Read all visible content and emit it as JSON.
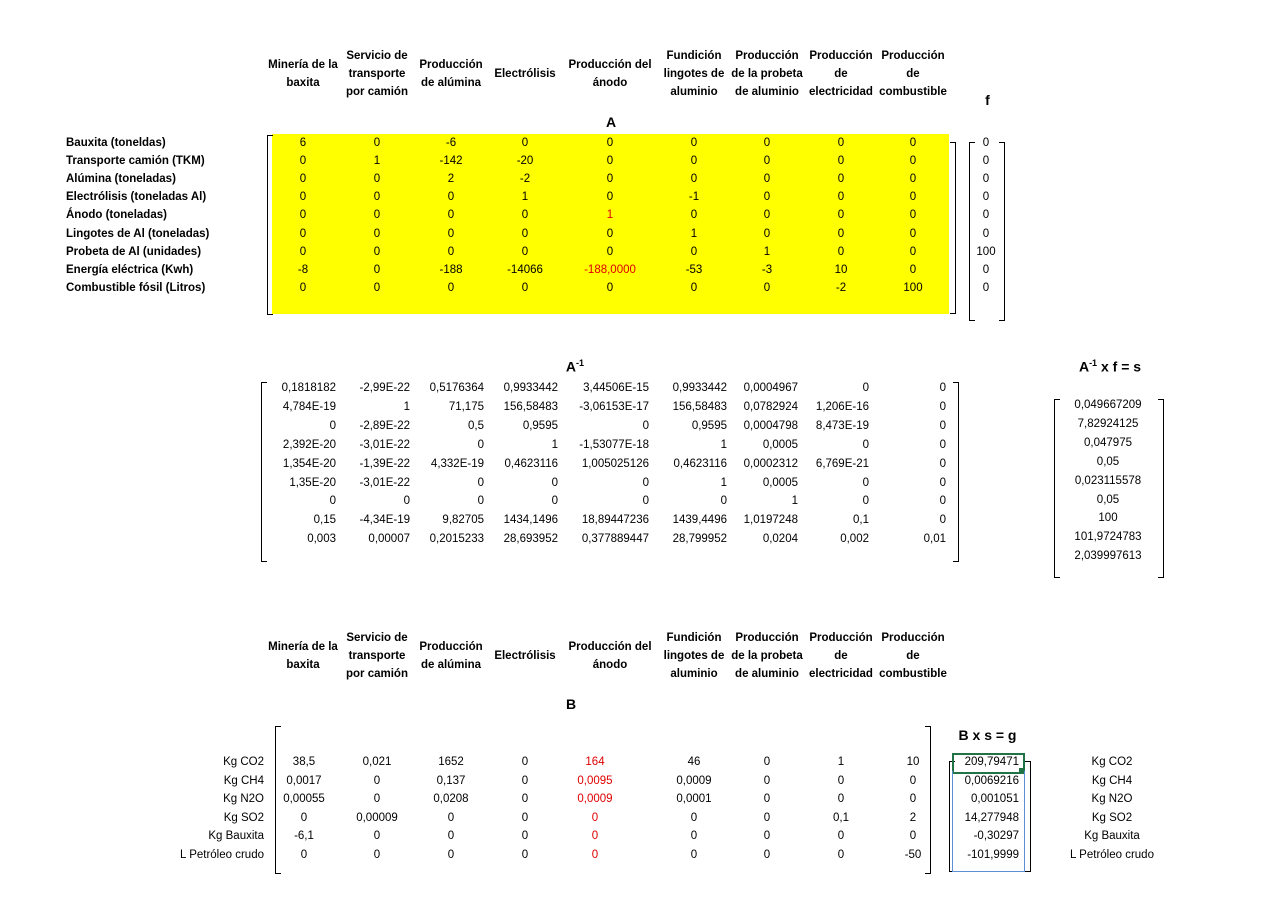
{
  "headers": [
    "Minería de la baxita",
    "Servicio de transporte por camión",
    "Producción de alúmina",
    "Electrólisis",
    "Producción del ánodo",
    "Fundición lingotes de aluminio",
    "Producción de la probeta de aluminio",
    "Producción de electricidad",
    "Producción de combustible"
  ],
  "A": {
    "title": "A",
    "f_title": "f",
    "row_labels": [
      "Bauxita (toneldas)",
      "Transporte camión (TKM)",
      "Alúmina (toneladas)",
      "Electrólisis (toneladas Al)",
      "Ánodo (toneladas)",
      "Lingotes de Al (toneladas)",
      "Probeta de Al (unidades)",
      "Energía eléctrica (Kwh)",
      "Combustible fósil (Litros)"
    ],
    "rows": [
      [
        "6",
        "0",
        "-6",
        "0",
        "0",
        "0",
        "0",
        "0",
        "0"
      ],
      [
        "0",
        "1",
        "-142",
        "-20",
        "0",
        "0",
        "0",
        "0",
        "0"
      ],
      [
        "0",
        "0",
        "2",
        "-2",
        "0",
        "0",
        "0",
        "0",
        "0"
      ],
      [
        "0",
        "0",
        "0",
        "1",
        "0",
        "-1",
        "0",
        "0",
        "0"
      ],
      [
        "0",
        "0",
        "0",
        "0",
        "1",
        "0",
        "0",
        "0",
        "0"
      ],
      [
        "0",
        "0",
        "0",
        "0",
        "0",
        "1",
        "0",
        "0",
        "0"
      ],
      [
        "0",
        "0",
        "0",
        "0",
        "0",
        "0",
        "1",
        "0",
        "0"
      ],
      [
        "-8",
        "0",
        "-188",
        "-14066",
        "-188,0000",
        "-53",
        "-3",
        "10",
        "0"
      ],
      [
        "0",
        "0",
        "0",
        "0",
        "0",
        "0",
        "0",
        "-2",
        "100"
      ]
    ],
    "f": [
      "0",
      "0",
      "0",
      "0",
      "0",
      "0",
      "100",
      "0",
      "0"
    ]
  },
  "Ainv": {
    "title": "A",
    "title_sup": "-1",
    "s_title_a": "A",
    "s_title_sup": "-1",
    "s_title_rest": " x f = s",
    "rows": [
      [
        "0,1818182",
        "-2,99E-22",
        "0,5176364",
        "0,9933442",
        "3,44506E-15",
        "0,9933442",
        "0,0004967",
        "0",
        "0"
      ],
      [
        "4,784E-19",
        "1",
        "71,175",
        "156,58483",
        "-3,06153E-17",
        "156,58483",
        "0,0782924",
        "1,206E-16",
        "0"
      ],
      [
        "0",
        "-2,89E-22",
        "0,5",
        "0,9595",
        "0",
        "0,9595",
        "0,0004798",
        "8,473E-19",
        "0"
      ],
      [
        "2,392E-20",
        "-3,01E-22",
        "0",
        "1",
        "-1,53077E-18",
        "1",
        "0,0005",
        "0",
        "0"
      ],
      [
        "1,354E-20",
        "-1,39E-22",
        "4,332E-19",
        "0,4623116",
        "1,005025126",
        "0,4623116",
        "0,0002312",
        "6,769E-21",
        "0"
      ],
      [
        "1,35E-20",
        "-3,01E-22",
        "0",
        "0",
        "0",
        "1",
        "0,0005",
        "0",
        "0"
      ],
      [
        "0",
        "0",
        "0",
        "0",
        "0",
        "0",
        "1",
        "0",
        "0"
      ],
      [
        "0,15",
        "-4,34E-19",
        "9,82705",
        "1434,1496",
        "18,89447236",
        "1439,4496",
        "1,0197248",
        "0,1",
        "0"
      ],
      [
        "0,003",
        "0,00007",
        "0,2015233",
        "28,693952",
        "0,377889447",
        "28,799952",
        "0,0204",
        "0,002",
        "0,01"
      ]
    ],
    "s": [
      "0,049667209",
      "7,82924125",
      "0,047975",
      "0,05",
      "0,023115578",
      "0,05",
      "100",
      "101,9724783",
      "2,039997613"
    ]
  },
  "B": {
    "title": "B",
    "g_title": "B x s = g",
    "row_labels": [
      "Kg CO2",
      "Kg CH4",
      "Kg N2O",
      "Kg SO2",
      "Kg Bauxita",
      "L Petróleo crudo"
    ],
    "rows": [
      [
        "38,5",
        "0,021",
        "1652",
        "0",
        "164",
        "46",
        "0",
        "1",
        "10"
      ],
      [
        "0,0017",
        "0",
        "0,137",
        "0",
        "0,0095",
        "0,0009",
        "0",
        "0",
        "0"
      ],
      [
        "0,00055",
        "0",
        "0,0208",
        "0",
        "0,0009",
        "0,0001",
        "0",
        "0",
        "0"
      ],
      [
        "0",
        "0,00009",
        "0",
        "0",
        "0",
        "0",
        "0",
        "0,1",
        "2"
      ],
      [
        "-6,1",
        "0",
        "0",
        "0",
        "0",
        "0",
        "0",
        "0",
        "0"
      ],
      [
        "0",
        "0",
        "0",
        "0",
        "0",
        "0",
        "0",
        "0",
        "-50"
      ]
    ],
    "g": [
      "209,79471",
      "0,0069216",
      "0,001051",
      "14,277948",
      "-0,30297",
      "-101,9999"
    ],
    "g_labels": [
      "Kg CO2",
      "Kg CH4",
      "Kg N2O",
      "Kg SO2",
      "Kg Bauxita",
      "L Petróleo crudo"
    ]
  },
  "colors": {
    "highlight": "#ffff00",
    "red_text": "#e00000",
    "selection": "#217346"
  }
}
